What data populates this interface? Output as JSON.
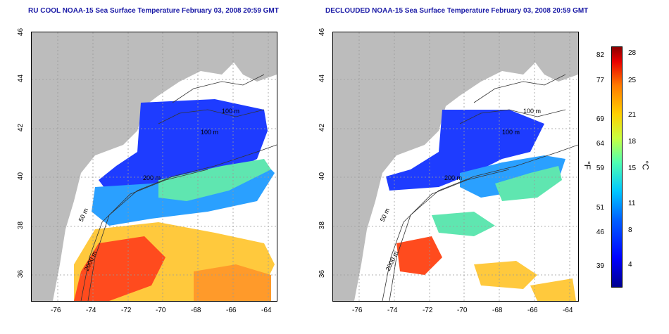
{
  "left_title": "RU COOL NOAA-15 Sea Surface Temperature February 03, 2008 20:59 GMT",
  "right_title": "DECLOUDED NOAA-15 Sea Surface Temperature February 03, 2008 20:59 GMT",
  "x_ticks": [
    "-76",
    "-74",
    "-72",
    "-70",
    "-68",
    "-66",
    "-64"
  ],
  "y_ticks": [
    "36",
    "38",
    "40",
    "42",
    "44",
    "46"
  ],
  "contour_labels": [
    "100 m",
    "100 m",
    "200 m",
    "50 m",
    "2000 m"
  ],
  "colorbar": {
    "unit_f": "°F",
    "unit_c": "°C",
    "f_ticks": [
      "82",
      "77",
      "69",
      "64",
      "59",
      "51",
      "46",
      "39"
    ],
    "c_ticks": [
      "28",
      "25",
      "21",
      "18",
      "15",
      "11",
      "8",
      "4"
    ]
  },
  "colors": {
    "land": "#bcbcbc",
    "cold": "#1e3cff",
    "cool": "#2aa0ff",
    "mid": "#5fe6b0",
    "warm": "#ffc93d",
    "hot": "#ff4b1e",
    "title": "#1a1aa6"
  },
  "chart_data": {
    "type": "heatmap",
    "xlim": [
      -77,
      -63
    ],
    "ylim": [
      35,
      46
    ],
    "grid": true,
    "colorbar_ticks_f": [
      82,
      77,
      69,
      64,
      59,
      51,
      46,
      39
    ],
    "colorbar_ticks_c": [
      28,
      25,
      21,
      18,
      15,
      11,
      8,
      4
    ]
  }
}
